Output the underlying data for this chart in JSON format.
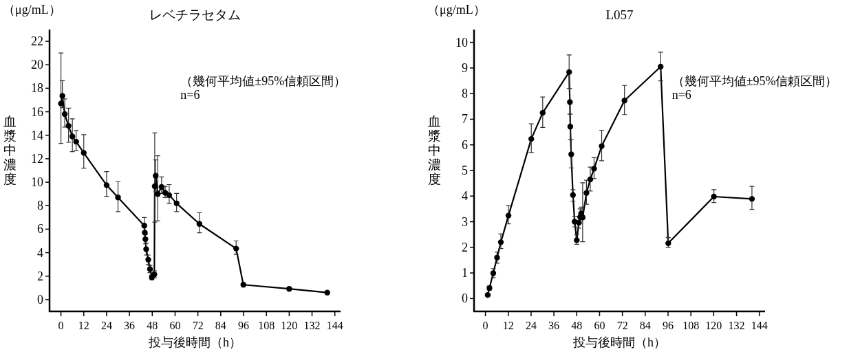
{
  "chart_data": [
    {
      "type": "line",
      "title": "レベチラセタム",
      "xlabel": "投与後時間（h）",
      "ylabel": "血漿中濃度",
      "annotations": [
        "（μg/mL）",
        "（幾何平均値±95%信頼区間）",
        "n=6"
      ],
      "marker": "circle",
      "line_style": "solid",
      "grid": false,
      "xlim": [
        -6,
        147
      ],
      "ylim": [
        -1,
        23
      ],
      "xticks": [
        0,
        12,
        24,
        36,
        48,
        60,
        72,
        84,
        96,
        108,
        120,
        132,
        144
      ],
      "yticks": [
        0,
        2,
        4,
        6,
        8,
        10,
        12,
        14,
        16,
        18,
        20,
        22
      ],
      "series": [
        {
          "color": "#000000",
          "x": [
            0,
            0.75,
            2,
            4,
            6,
            8,
            12,
            24,
            30,
            43.8,
            44.1,
            44.4,
            44.8,
            45.9,
            46.8,
            47.8,
            49.1,
            49.3,
            49.8,
            50.9,
            52.9,
            54.8,
            56.9,
            60.8,
            72.8,
            92.1,
            95.9,
            120,
            140
          ],
          "values": [
            16.7,
            17.35,
            15.8,
            14.8,
            13.9,
            13.45,
            12.5,
            9.75,
            8.7,
            6.3,
            5.7,
            5.15,
            4.3,
            3.4,
            2.6,
            1.9,
            2.15,
            9.65,
            10.55,
            9.0,
            9.6,
            9.1,
            8.9,
            8.2,
            6.45,
            4.35,
            1.27,
            0.92,
            0.6
          ],
          "errors": [
            [
              13.3,
              21.0
            ],
            [
              16.35,
              18.65
            ],
            [
              14.7,
              17.1
            ],
            [
              13.4,
              16.3
            ],
            [
              12.6,
              15.4
            ],
            [
              12.7,
              14.4
            ],
            [
              11.2,
              14.05
            ],
            [
              8.8,
              10.9
            ],
            [
              7.5,
              10.05
            ],
            [
              5.7,
              7.0
            ],
            0.5,
            0.4,
            0.5,
            0.4,
            0.3,
            0.2,
            0.3,
            [
              6.6,
              14.2
            ],
            [
              9.25,
              11.9
            ],
            [
              6.7,
              12.25
            ],
            [
              9.05,
              10.45
            ],
            [
              8.7,
              9.65
            ],
            [
              8.2,
              9.8
            ],
            [
              7.5,
              9.05
            ],
            [
              5.7,
              7.4
            ],
            [
              3.85,
              5.0
            ],
            0.15,
            0.12,
            0.1
          ]
        }
      ]
    },
    {
      "type": "line",
      "title": "L057",
      "xlabel": "投与後時間（h）",
      "ylabel": "血漿中濃度",
      "annotations": [
        "（μg/mL）",
        "（幾何平均値±95%信頼区間）",
        "n=6"
      ],
      "marker": "circle",
      "line_style": "solid",
      "grid": false,
      "xlim": [
        -6,
        147
      ],
      "ylim": [
        -0.5,
        10.5
      ],
      "xticks": [
        0,
        12,
        24,
        36,
        48,
        60,
        72,
        84,
        96,
        108,
        120,
        132,
        144
      ],
      "yticks": [
        0,
        1,
        2,
        3,
        4,
        5,
        6,
        7,
        8,
        9,
        10
      ],
      "series": [
        {
          "color": "#000000",
          "x": [
            1.2,
            2.1,
            4.1,
            6.1,
            8.1,
            12.1,
            24.1,
            30.1,
            44,
            44.4,
            44.6,
            45.1,
            46,
            46.9,
            48,
            49.1,
            49.8,
            50.3,
            51.1,
            53.1,
            55.1,
            57.1,
            61.1,
            73.1,
            92.1,
            96.1,
            120.1,
            140.1
          ],
          "values": [
            0.14,
            0.41,
            0.99,
            1.6,
            2.2,
            3.24,
            6.23,
            7.25,
            8.84,
            7.67,
            6.71,
            5.63,
            4.04,
            3.0,
            2.28,
            2.96,
            3.18,
            3.32,
            3.17,
            4.12,
            4.65,
            5.07,
            5.95,
            7.73,
            9.05,
            2.16,
            3.98,
            3.89
          ],
          "errors": [
            0.05,
            0.08,
            0.18,
            0.22,
            [
              1.95,
              2.52
            ],
            [
              2.92,
              3.63
            ],
            [
              5.7,
              6.82
            ],
            [
              6.68,
              7.87
            ],
            [
              8.2,
              9.51
            ],
            [
              7.2,
              8.2
            ],
            [
              6.2,
              7.2
            ],
            [
              5.1,
              6.2
            ],
            [
              3.8,
              4.25
            ],
            [
              2.8,
              3.2
            ],
            [
              2.12,
              2.5
            ],
            [
              2.75,
              3.2
            ],
            [
              2.95,
              3.5
            ],
            0.25,
            [
              2.22,
              4.52
            ],
            [
              3.68,
              4.62
            ],
            [
              4.2,
              5.13
            ],
            [
              4.68,
              5.5
            ],
            [
              5.38,
              6.57
            ],
            [
              7.18,
              8.32
            ],
            [
              8.5,
              9.62
            ],
            [
              2.0,
              2.38
            ],
            [
              3.75,
              4.25
            ],
            [
              3.48,
              4.38
            ]
          ]
        }
      ]
    }
  ]
}
